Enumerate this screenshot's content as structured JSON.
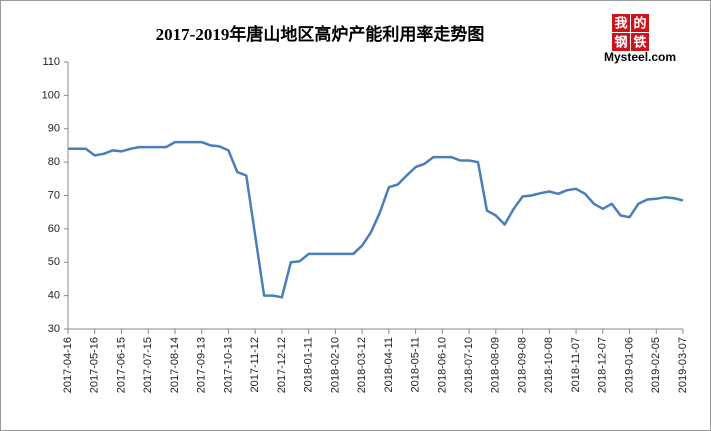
{
  "chart_data": {
    "type": "line",
    "title": "2017-2019年唐山地区高炉产能利用率走势图",
    "logo": {
      "chars": [
        "我",
        "的",
        "钢",
        "铁"
      ],
      "brand": "Mysteel.com"
    },
    "categories": [
      "2017-04-16",
      null,
      null,
      "2017-05-16",
      null,
      null,
      "2017-06-15",
      null,
      null,
      "2017-07-15",
      null,
      null,
      "2017-08-14",
      null,
      null,
      "2017-09-13",
      null,
      null,
      "2017-10-13",
      null,
      null,
      "2017-11-12",
      null,
      null,
      "2017-12-12",
      null,
      null,
      "2018-01-11",
      null,
      null,
      "2018-02-10",
      null,
      null,
      "2018-03-12",
      null,
      null,
      "2018-04-11",
      null,
      null,
      "2018-05-11",
      null,
      null,
      "2018-06-10",
      null,
      null,
      "2018-07-10",
      null,
      null,
      "2018-08-09",
      null,
      null,
      "2018-09-08",
      null,
      null,
      "2018-10-08",
      null,
      null,
      "2018-11-07",
      null,
      null,
      "2018-12-07",
      null,
      null,
      "2019-01-06",
      null,
      null,
      "2019-02-05",
      null,
      null,
      "2019-03-07"
    ],
    "values": [
      84,
      84,
      84,
      82,
      82.5,
      83.5,
      83.2,
      84,
      84.5,
      84.5,
      84.5,
      84.5,
      86,
      86,
      86,
      86,
      85,
      84.7,
      83.5,
      77,
      76,
      58,
      40,
      40,
      39.5,
      50,
      50.3,
      52.5,
      52.5,
      52.5,
      52.5,
      52.5,
      52.5,
      55,
      59,
      65,
      72.5,
      73.3,
      76,
      78.5,
      79.5,
      81.5,
      81.5,
      81.5,
      80.5,
      80.5,
      80,
      65.5,
      64,
      61.3,
      66,
      69.7,
      70,
      70.7,
      71.2,
      70.5,
      71.6,
      72,
      70.5,
      67.5,
      66,
      67.5,
      64,
      63.5,
      67.5,
      68.8,
      69,
      69.5,
      69.2,
      68.5
    ],
    "color": "#4a7ebb",
    "ylim": [
      30,
      110
    ],
    "yticks": [
      30,
      40,
      50,
      60,
      70,
      80,
      90,
      100,
      110
    ]
  }
}
